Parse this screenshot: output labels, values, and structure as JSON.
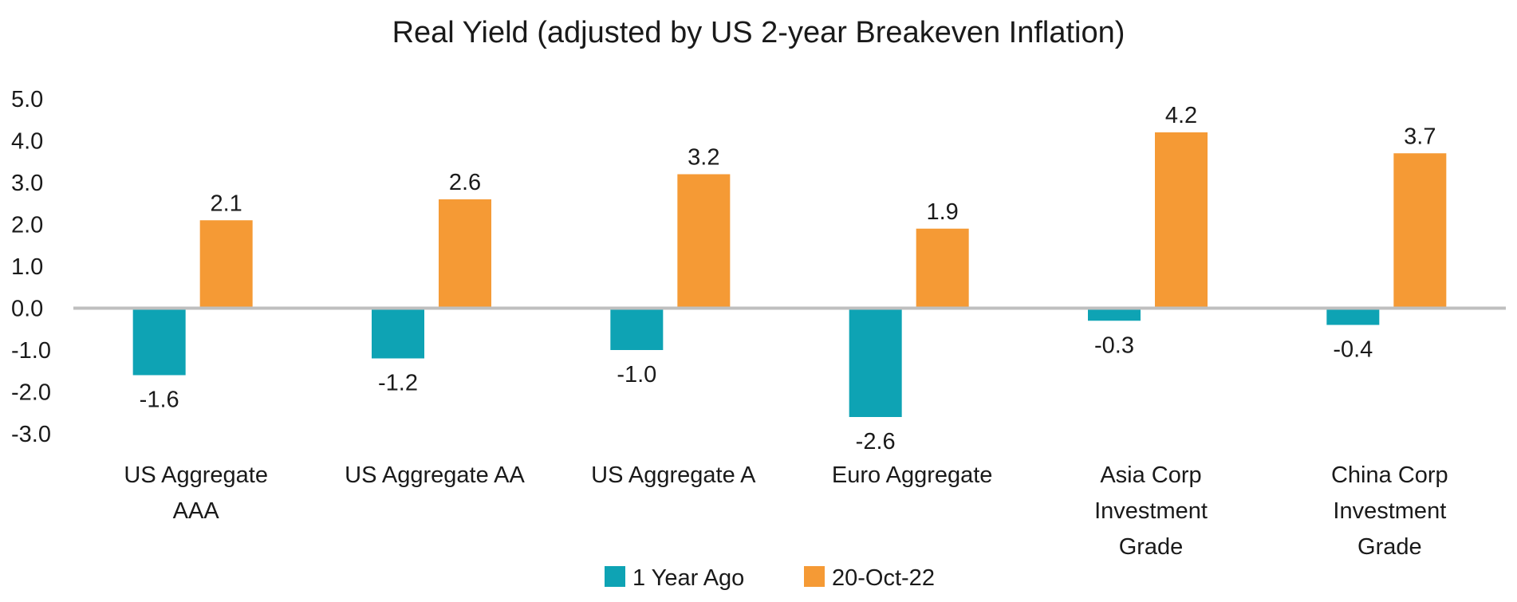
{
  "chart_data": {
    "type": "bar",
    "title": "Real Yield (adjusted by US 2-year Breakeven Inflation)",
    "categories": [
      [
        "US Aggregate",
        "AAA"
      ],
      [
        "US Aggregate AA"
      ],
      [
        "US Aggregate A"
      ],
      [
        "Euro Aggregate"
      ],
      [
        "Asia Corp",
        "Investment",
        "Grade"
      ],
      [
        "China Corp",
        "Investment",
        "Grade"
      ]
    ],
    "series": [
      {
        "name": "1 Year Ago",
        "color": "#0ea3b4",
        "values": [
          -1.6,
          -1.2,
          -1.0,
          -2.6,
          -0.3,
          -0.4
        ],
        "labels": [
          "-1.6",
          "-1.2",
          "-1.0",
          "-2.6",
          "-0.3",
          "-0.4"
        ]
      },
      {
        "name": "20-Oct-22",
        "color": "#f59a35",
        "values": [
          2.1,
          2.6,
          3.2,
          1.9,
          4.2,
          3.7
        ],
        "labels": [
          "2.1",
          "2.6",
          "3.2",
          "1.9",
          "4.2",
          "3.7"
        ]
      }
    ],
    "ylim": [
      -3.0,
      5.0
    ],
    "yticks": [
      "5.0",
      "4.0",
      "3.0",
      "2.0",
      "1.0",
      "0.0",
      "-1.0",
      "-2.0",
      "-3.0"
    ],
    "ytick_values": [
      5,
      4,
      3,
      2,
      1,
      0,
      -1,
      -2,
      -3
    ],
    "zero_line_color": "#bfbfbf",
    "legend_position": "bottom",
    "grid": false
  }
}
